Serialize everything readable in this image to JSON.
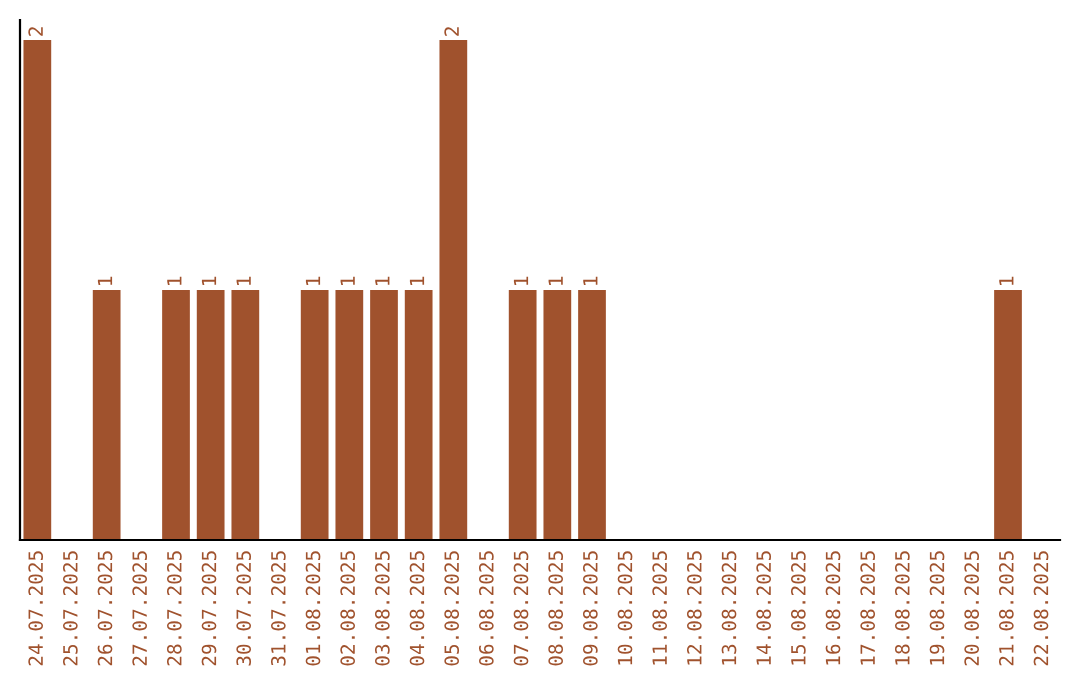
{
  "chart_data": {
    "type": "bar",
    "categories": [
      "24.07.2025",
      "25.07.2025",
      "26.07.2025",
      "27.07.2025",
      "28.07.2025",
      "29.07.2025",
      "30.07.2025",
      "31.07.2025",
      "01.08.2025",
      "02.08.2025",
      "03.08.2025",
      "04.08.2025",
      "05.08.2025",
      "06.08.2025",
      "07.08.2025",
      "08.08.2025",
      "09.08.2025",
      "10.08.2025",
      "11.08.2025",
      "12.08.2025",
      "13.08.2025",
      "14.08.2025",
      "15.08.2025",
      "16.08.2025",
      "17.08.2025",
      "18.08.2025",
      "19.08.2025",
      "20.08.2025",
      "21.08.2025",
      "22.08.2025"
    ],
    "values": [
      2,
      0,
      1,
      0,
      1,
      1,
      1,
      0,
      1,
      1,
      1,
      1,
      2,
      0,
      1,
      1,
      1,
      0,
      0,
      0,
      0,
      0,
      0,
      0,
      0,
      0,
      0,
      0,
      1,
      0
    ],
    "value_labels": [
      "2",
      null,
      "1",
      null,
      "1",
      "1",
      "1",
      null,
      "1",
      "1",
      "1",
      "1",
      "2",
      null,
      "1",
      "1",
      "1",
      null,
      null,
      null,
      null,
      null,
      null,
      null,
      null,
      null,
      null,
      null,
      "1",
      null
    ],
    "color": "#a0522d",
    "tick_labels": "x",
    "grid": false,
    "legend": false
  }
}
